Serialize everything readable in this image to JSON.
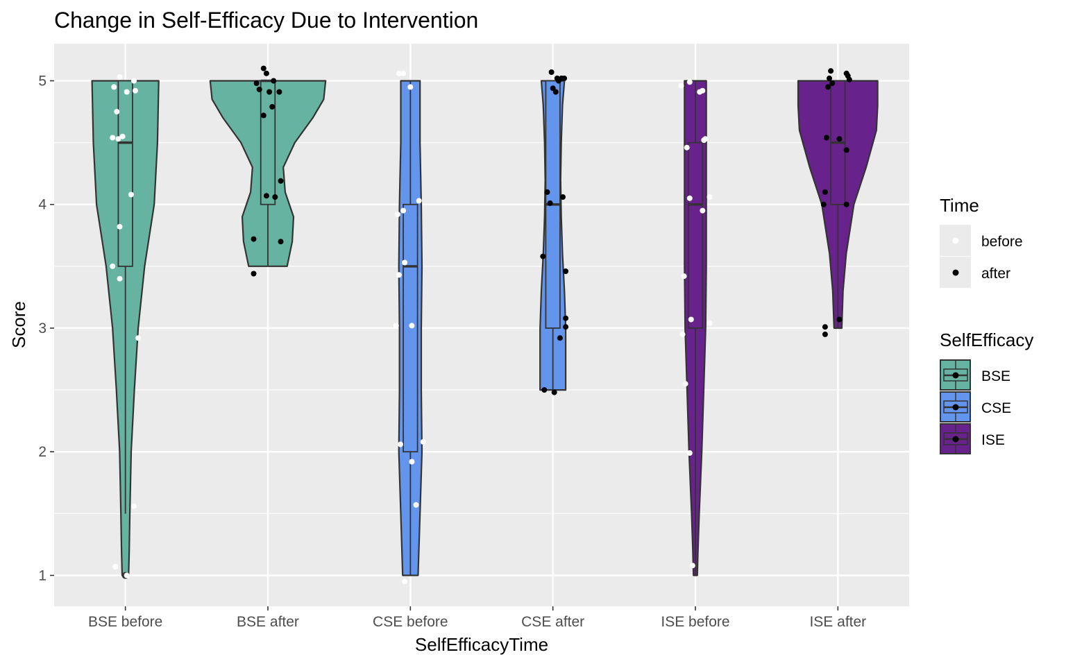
{
  "chart_data": {
    "type": "violin",
    "title": "Change in Self-Efficacy Due to Intervention",
    "xlabel": "SelfEfficacyTime",
    "ylabel": "Score",
    "ylim": [
      0.75,
      5.3
    ],
    "yticks": [
      1,
      2,
      3,
      4,
      5
    ],
    "grid": true,
    "categories": [
      "BSE before",
      "BSE after",
      "CSE before",
      "CSE after",
      "ISE before",
      "ISE after"
    ],
    "groups": [
      {
        "category": "BSE before",
        "self_efficacy": "BSE",
        "time": "before",
        "box": {
          "q1": 3.5,
          "median": 4.5,
          "q3": 5.0,
          "whisker_low": 1.5,
          "whisker_high": 5.0
        },
        "outliers": [
          1.0
        ],
        "violin": [
          [
            1.0,
            0.05
          ],
          [
            1.2,
            0.06
          ],
          [
            1.5,
            0.07
          ],
          [
            2.0,
            0.09
          ],
          [
            2.5,
            0.14
          ],
          [
            3.0,
            0.2
          ],
          [
            3.5,
            0.3
          ],
          [
            4.0,
            0.45
          ],
          [
            4.5,
            0.5
          ],
          [
            5.0,
            0.52
          ]
        ],
        "points": [
          [
            -0.04,
            5.03
          ],
          [
            0.06,
            5.0
          ],
          [
            -0.08,
            4.95
          ],
          [
            0.07,
            4.92
          ],
          [
            0.01,
            4.91
          ],
          [
            -0.06,
            4.75
          ],
          [
            -0.09,
            4.54
          ],
          [
            -0.05,
            4.53
          ],
          [
            -0.02,
            4.55
          ],
          [
            0.04,
            4.08
          ],
          [
            -0.04,
            3.82
          ],
          [
            -0.09,
            3.5
          ],
          [
            -0.04,
            3.4
          ],
          [
            0.09,
            2.92
          ],
          [
            0.06,
            1.56
          ],
          [
            -0.07,
            1.07
          ],
          [
            0.01,
            1.0
          ]
        ]
      },
      {
        "category": "BSE after",
        "self_efficacy": "BSE",
        "time": "after",
        "box": {
          "q1": 4.0,
          "median": 5.0,
          "q3": 5.0,
          "whisker_low": 3.5,
          "whisker_high": 5.0
        },
        "outliers": [],
        "violin": [
          [
            3.5,
            0.3
          ],
          [
            3.7,
            0.38
          ],
          [
            3.9,
            0.4
          ],
          [
            4.1,
            0.27
          ],
          [
            4.3,
            0.24
          ],
          [
            4.5,
            0.42
          ],
          [
            4.7,
            0.7
          ],
          [
            4.85,
            0.87
          ],
          [
            5.0,
            0.9
          ]
        ],
        "points": [
          [
            -0.03,
            5.1
          ],
          [
            -0.01,
            5.06
          ],
          [
            0.04,
            5.0
          ],
          [
            -0.08,
            4.98
          ],
          [
            -0.06,
            4.93
          ],
          [
            0.01,
            4.91
          ],
          [
            0.08,
            4.91
          ],
          [
            0.03,
            4.79
          ],
          [
            -0.03,
            4.72
          ],
          [
            0.09,
            4.19
          ],
          [
            -0.01,
            4.07
          ],
          [
            0.05,
            4.06
          ],
          [
            -0.1,
            3.72
          ],
          [
            0.09,
            3.7
          ],
          [
            -0.1,
            3.44
          ]
        ]
      },
      {
        "category": "CSE before",
        "self_efficacy": "CSE",
        "time": "before",
        "box": {
          "q1": 2.0,
          "median": 3.5,
          "q3": 4.0,
          "whisker_low": 1.0,
          "whisker_high": 5.0
        },
        "outliers": [],
        "violin": [
          [
            1.0,
            0.12
          ],
          [
            1.5,
            0.15
          ],
          [
            2.0,
            0.18
          ],
          [
            2.5,
            0.17
          ],
          [
            3.0,
            0.17
          ],
          [
            3.5,
            0.18
          ],
          [
            4.0,
            0.17
          ],
          [
            4.5,
            0.15
          ],
          [
            5.0,
            0.15
          ]
        ],
        "points": [
          [
            -0.08,
            5.06
          ],
          [
            -0.05,
            5.06
          ],
          [
            0.0,
            4.95
          ],
          [
            0.06,
            4.03
          ],
          [
            -0.05,
            3.95
          ],
          [
            -0.09,
            3.92
          ],
          [
            -0.04,
            3.53
          ],
          [
            -0.08,
            3.43
          ],
          [
            -0.1,
            3.02
          ],
          [
            0.01,
            3.02
          ],
          [
            0.09,
            2.08
          ],
          [
            -0.07,
            2.06
          ],
          [
            0.01,
            1.92
          ],
          [
            0.04,
            1.57
          ],
          [
            -0.04,
            0.95
          ]
        ]
      },
      {
        "category": "CSE after",
        "self_efficacy": "CSE",
        "time": "after",
        "box": {
          "q1": 3.0,
          "median": 4.0,
          "q3": 5.0,
          "whisker_low": 2.5,
          "whisker_high": 5.0
        },
        "outliers": [],
        "violin": [
          [
            2.5,
            0.2
          ],
          [
            2.8,
            0.2
          ],
          [
            3.0,
            0.2
          ],
          [
            3.3,
            0.18
          ],
          [
            3.6,
            0.15
          ],
          [
            3.9,
            0.13
          ],
          [
            4.2,
            0.12
          ],
          [
            4.5,
            0.13
          ],
          [
            4.8,
            0.15
          ],
          [
            5.0,
            0.18
          ]
        ],
        "points": [
          [
            -0.01,
            5.07
          ],
          [
            0.03,
            5.02
          ],
          [
            0.06,
            5.02
          ],
          [
            0.08,
            5.02
          ],
          [
            0.04,
            5.0
          ],
          [
            0.0,
            4.94
          ],
          [
            0.02,
            4.91
          ],
          [
            -0.04,
            4.1
          ],
          [
            0.07,
            4.06
          ],
          [
            -0.02,
            4.01
          ],
          [
            -0.07,
            3.58
          ],
          [
            0.09,
            3.46
          ],
          [
            0.09,
            3.08
          ],
          [
            0.09,
            3.01
          ],
          [
            0.05,
            2.92
          ],
          [
            -0.06,
            2.5
          ],
          [
            0.01,
            2.48
          ]
        ]
      },
      {
        "category": "ISE before",
        "self_efficacy": "ISE",
        "time": "before",
        "box": {
          "q1": 3.0,
          "median": 4.0,
          "q3": 4.5,
          "whisker_low": 1.0,
          "whisker_high": 5.0
        },
        "outliers": [],
        "violin": [
          [
            1.0,
            0.03
          ],
          [
            1.2,
            0.04
          ],
          [
            1.5,
            0.06
          ],
          [
            2.0,
            0.1
          ],
          [
            2.5,
            0.13
          ],
          [
            3.0,
            0.16
          ],
          [
            3.5,
            0.17
          ],
          [
            4.0,
            0.17
          ],
          [
            4.5,
            0.17
          ],
          [
            5.0,
            0.17
          ]
        ],
        "points": [
          [
            -0.04,
            4.99
          ],
          [
            -0.1,
            4.96
          ],
          [
            0.05,
            4.92
          ],
          [
            0.03,
            4.91
          ],
          [
            0.07,
            4.53
          ],
          [
            0.06,
            4.52
          ],
          [
            -0.06,
            4.46
          ],
          [
            0.1,
            4.06
          ],
          [
            -0.04,
            4.05
          ],
          [
            0.05,
            3.95
          ],
          [
            -0.08,
            3.42
          ],
          [
            -0.03,
            3.07
          ],
          [
            0.1,
            3.04
          ],
          [
            -0.09,
            2.95
          ],
          [
            -0.07,
            2.55
          ],
          [
            -0.04,
            1.99
          ],
          [
            -0.02,
            1.08
          ]
        ]
      },
      {
        "category": "ISE after",
        "self_efficacy": "ISE",
        "time": "after",
        "box": {
          "q1": 4.0,
          "median": 4.5,
          "q3": 5.0,
          "whisker_low": 3.0,
          "whisker_high": 5.0
        },
        "outliers": [],
        "violin": [
          [
            3.0,
            0.06
          ],
          [
            3.3,
            0.08
          ],
          [
            3.6,
            0.13
          ],
          [
            4.0,
            0.25
          ],
          [
            4.3,
            0.44
          ],
          [
            4.6,
            0.6
          ],
          [
            4.8,
            0.62
          ],
          [
            5.0,
            0.62
          ]
        ],
        "points": [
          [
            -0.05,
            5.08
          ],
          [
            0.06,
            5.06
          ],
          [
            0.07,
            5.04
          ],
          [
            0.08,
            5.01
          ],
          [
            -0.06,
            5.02
          ],
          [
            -0.04,
            4.98
          ],
          [
            -0.07,
            4.95
          ],
          [
            -0.08,
            4.54
          ],
          [
            0.01,
            4.53
          ],
          [
            0.06,
            4.44
          ],
          [
            -0.09,
            4.1
          ],
          [
            -0.1,
            4.0
          ],
          [
            0.06,
            4.0
          ],
          [
            0.01,
            3.07
          ],
          [
            -0.09,
            3.01
          ],
          [
            -0.09,
            2.95
          ]
        ]
      }
    ],
    "legend": {
      "placement": "right",
      "time": {
        "title": "Time",
        "items": [
          {
            "label": "before",
            "color": "#ffffff"
          },
          {
            "label": "after",
            "color": "#000000"
          }
        ]
      },
      "self_efficacy": {
        "title": "SelfEfficacy",
        "items": [
          {
            "label": "BSE",
            "color": "#66b3a2"
          },
          {
            "label": "CSE",
            "color": "#6495ed"
          },
          {
            "label": "ISE",
            "color": "#68228b"
          }
        ]
      }
    },
    "colors": {
      "BSE": "#66b3a2",
      "CSE": "#6495ed",
      "ISE": "#68228b",
      "before": "#ffffff",
      "after": "#000000",
      "panel": "#ebebeb",
      "grid": "#ffffff",
      "outline": "#333333"
    }
  }
}
